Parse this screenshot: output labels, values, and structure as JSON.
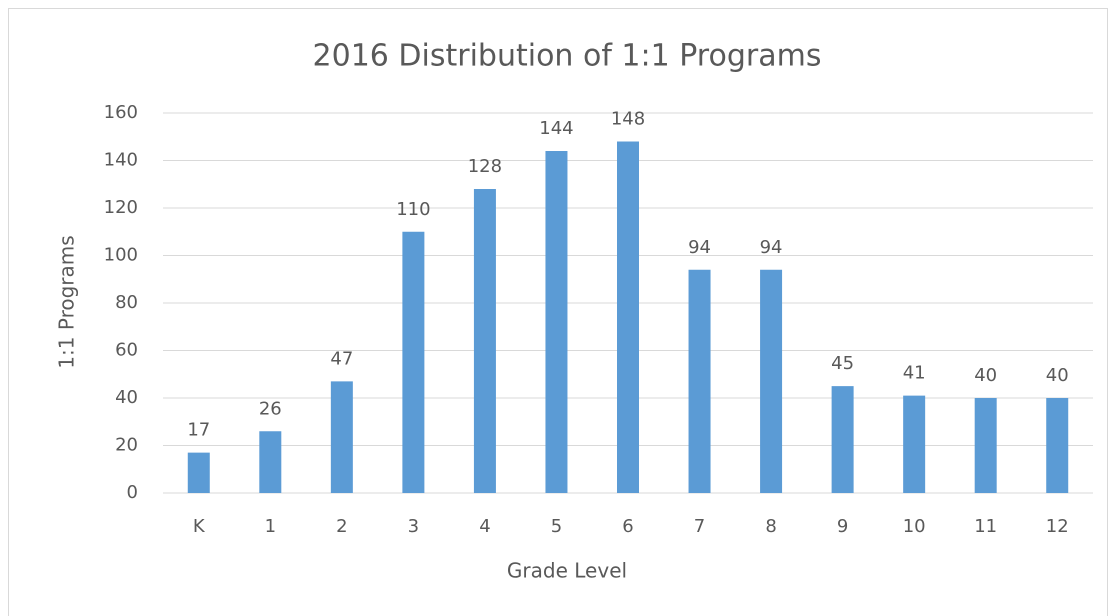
{
  "chart_data": {
    "type": "bar",
    "title": "2016 Distribution of 1:1 Programs",
    "x_label": "Grade Level",
    "y_label": "1:1 Programs",
    "categories": [
      "K",
      "1",
      "2",
      "3",
      "4",
      "5",
      "6",
      "7",
      "8",
      "9",
      "10",
      "11",
      "12"
    ],
    "values": [
      17,
      26,
      47,
      110,
      128,
      144,
      148,
      94,
      94,
      45,
      41,
      40,
      40
    ],
    "color": "#5b9bd5",
    "ylim": [
      0,
      160
    ],
    "yticks": [
      0,
      20,
      40,
      60,
      80,
      100,
      120,
      140,
      160
    ],
    "grid": true
  }
}
